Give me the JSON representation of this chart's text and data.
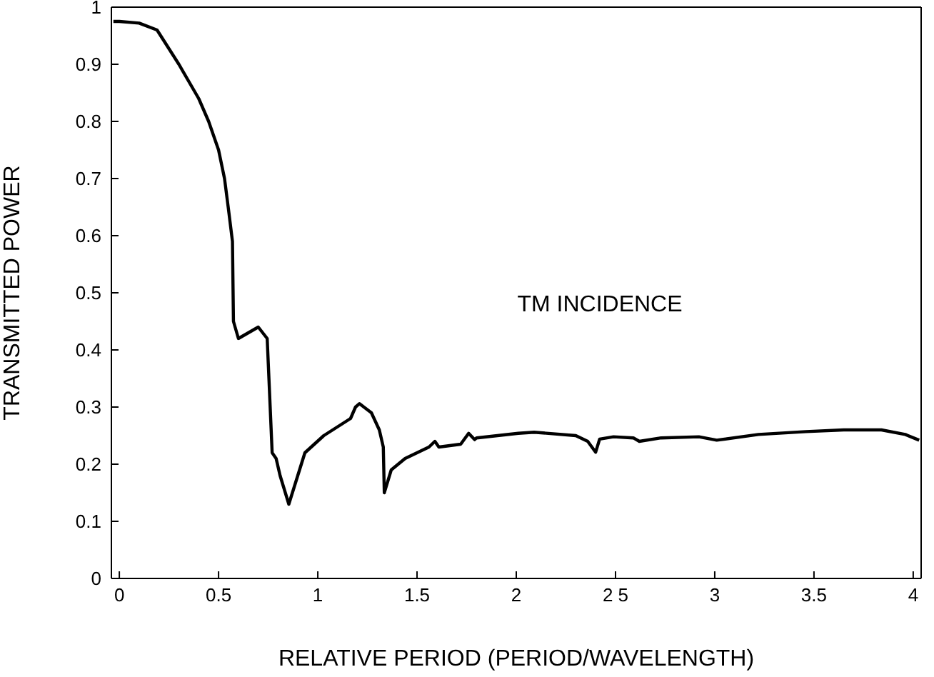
{
  "chart_data": {
    "type": "line",
    "xlabel": "RELATIVE PERIOD (PERIOD/WAVELENGTH)",
    "ylabel": "TRANSMITTED POWER",
    "annotations": [
      "TM INCIDENCE"
    ],
    "xlim": [
      -0.04,
      4.04
    ],
    "ylim": [
      0,
      1
    ],
    "xticks": [
      0,
      0.5,
      1,
      1.5,
      2,
      {
        "value": 2.5,
        "label": "2 5"
      },
      3,
      3.5,
      4
    ],
    "yticks": [
      0,
      0.1,
      0.2,
      0.3,
      0.4,
      0.5,
      0.6,
      0.7,
      0.8,
      0.9,
      1
    ],
    "marker": "none",
    "line_style": "solid",
    "series": [
      {
        "color": "#000000",
        "x": [
          -0.03,
          0,
          0.1,
          0.19,
          0.3,
          0.4,
          0.45,
          0.5,
          0.53,
          0.55,
          0.57,
          0.575,
          0.6,
          0.7,
          0.745,
          0.77,
          0.79,
          0.81,
          0.854,
          0.935,
          1.03,
          1.165,
          1.19,
          1.21,
          1.27,
          1.31,
          1.33,
          1.335,
          1.37,
          1.44,
          1.56,
          1.59,
          1.61,
          1.72,
          1.76,
          1.79,
          1.8,
          2.01,
          2.09,
          2.3,
          2.36,
          2.4,
          2.42,
          2.49,
          2.59,
          2.62,
          2.73,
          2.92,
          3.01,
          3.22,
          3.46,
          3.65,
          3.84,
          3.96,
          4.03
        ],
        "values": [
          0.975,
          0.975,
          0.972,
          0.96,
          0.9,
          0.84,
          0.8,
          0.75,
          0.7,
          0.646,
          0.59,
          0.45,
          0.42,
          0.44,
          0.42,
          0.22,
          0.21,
          0.18,
          0.13,
          0.22,
          0.25,
          0.28,
          0.3,
          0.306,
          0.29,
          0.26,
          0.23,
          0.15,
          0.19,
          0.21,
          0.23,
          0.24,
          0.23,
          0.235,
          0.254,
          0.243,
          0.246,
          0.254,
          0.256,
          0.25,
          0.24,
          0.221,
          0.244,
          0.248,
          0.246,
          0.24,
          0.246,
          0.248,
          0.242,
          0.252,
          0.257,
          0.26,
          0.26,
          0.252,
          0.242
        ]
      }
    ]
  }
}
